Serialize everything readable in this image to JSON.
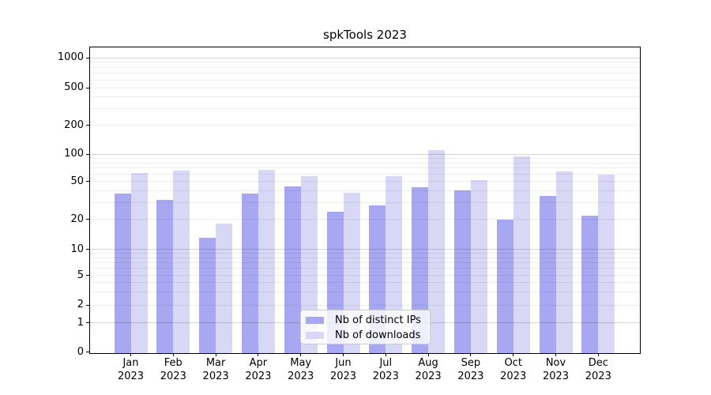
{
  "chart_data": {
    "type": "bar",
    "title": "spkTools 2023",
    "categories": [
      "Jan",
      "Feb",
      "Mar",
      "Apr",
      "May",
      "Jun",
      "Jul",
      "Aug",
      "Sep",
      "Oct",
      "Nov",
      "Dec"
    ],
    "year_line": "2023",
    "series": [
      {
        "name": "Nb of distinct IPs",
        "color": "#a8a8f2",
        "values": [
          37,
          32,
          13,
          37,
          44,
          24,
          28,
          43,
          40,
          20,
          35,
          22
        ]
      },
      {
        "name": "Nb of downloads",
        "color": "#d8d8f6",
        "values": [
          62,
          66,
          18,
          67,
          57,
          38,
          57,
          110,
          52,
          95,
          64,
          59
        ]
      }
    ],
    "yscale": "symlog",
    "yticks": [
      0,
      1,
      2,
      5,
      10,
      20,
      50,
      100,
      200,
      500,
      1000
    ],
    "ytick_labels": [
      "0",
      "1",
      "2",
      "5",
      "10",
      "20",
      "50",
      "100",
      "200",
      "500",
      "1000"
    ],
    "ylim": [
      0,
      1300
    ],
    "xlabel": "",
    "ylabel": "",
    "grid": true,
    "legend_position": "lower center",
    "colors": {
      "spine": "#000000",
      "grid_major": "#d6d6d6",
      "grid_minor": "#ededed",
      "background": "#ffffff"
    }
  }
}
